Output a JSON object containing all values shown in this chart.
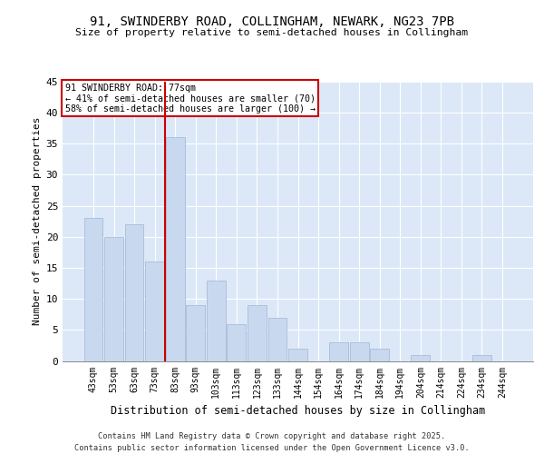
{
  "title1": "91, SWINDERBY ROAD, COLLINGHAM, NEWARK, NG23 7PB",
  "title2": "Size of property relative to semi-detached houses in Collingham",
  "xlabel": "Distribution of semi-detached houses by size in Collingham",
  "ylabel": "Number of semi-detached properties",
  "categories": [
    "43sqm",
    "53sqm",
    "63sqm",
    "73sqm",
    "83sqm",
    "93sqm",
    "103sqm",
    "113sqm",
    "123sqm",
    "133sqm",
    "144sqm",
    "154sqm",
    "164sqm",
    "174sqm",
    "184sqm",
    "194sqm",
    "204sqm",
    "214sqm",
    "224sqm",
    "234sqm",
    "244sqm"
  ],
  "values": [
    23,
    20,
    22,
    16,
    36,
    9,
    13,
    6,
    9,
    7,
    2,
    0,
    3,
    3,
    2,
    0,
    1,
    0,
    0,
    1,
    0
  ],
  "bar_color": "#c8d9ef",
  "bar_edge_color": "#aabcd8",
  "vline_x": 3.5,
  "vline_color": "#cc0000",
  "annotation_title": "91 SWINDERBY ROAD: 77sqm",
  "annotation_line1": "← 41% of semi-detached houses are smaller (70)",
  "annotation_line2": "58% of semi-detached houses are larger (100) →",
  "ylim": [
    0,
    45
  ],
  "yticks": [
    0,
    5,
    10,
    15,
    20,
    25,
    30,
    35,
    40,
    45
  ],
  "footer1": "Contains HM Land Registry data © Crown copyright and database right 2025.",
  "footer2": "Contains public sector information licensed under the Open Government Licence v3.0.",
  "bg_color": "#ffffff",
  "plot_bg_color": "#dce8f8",
  "grid_color": "#ffffff"
}
